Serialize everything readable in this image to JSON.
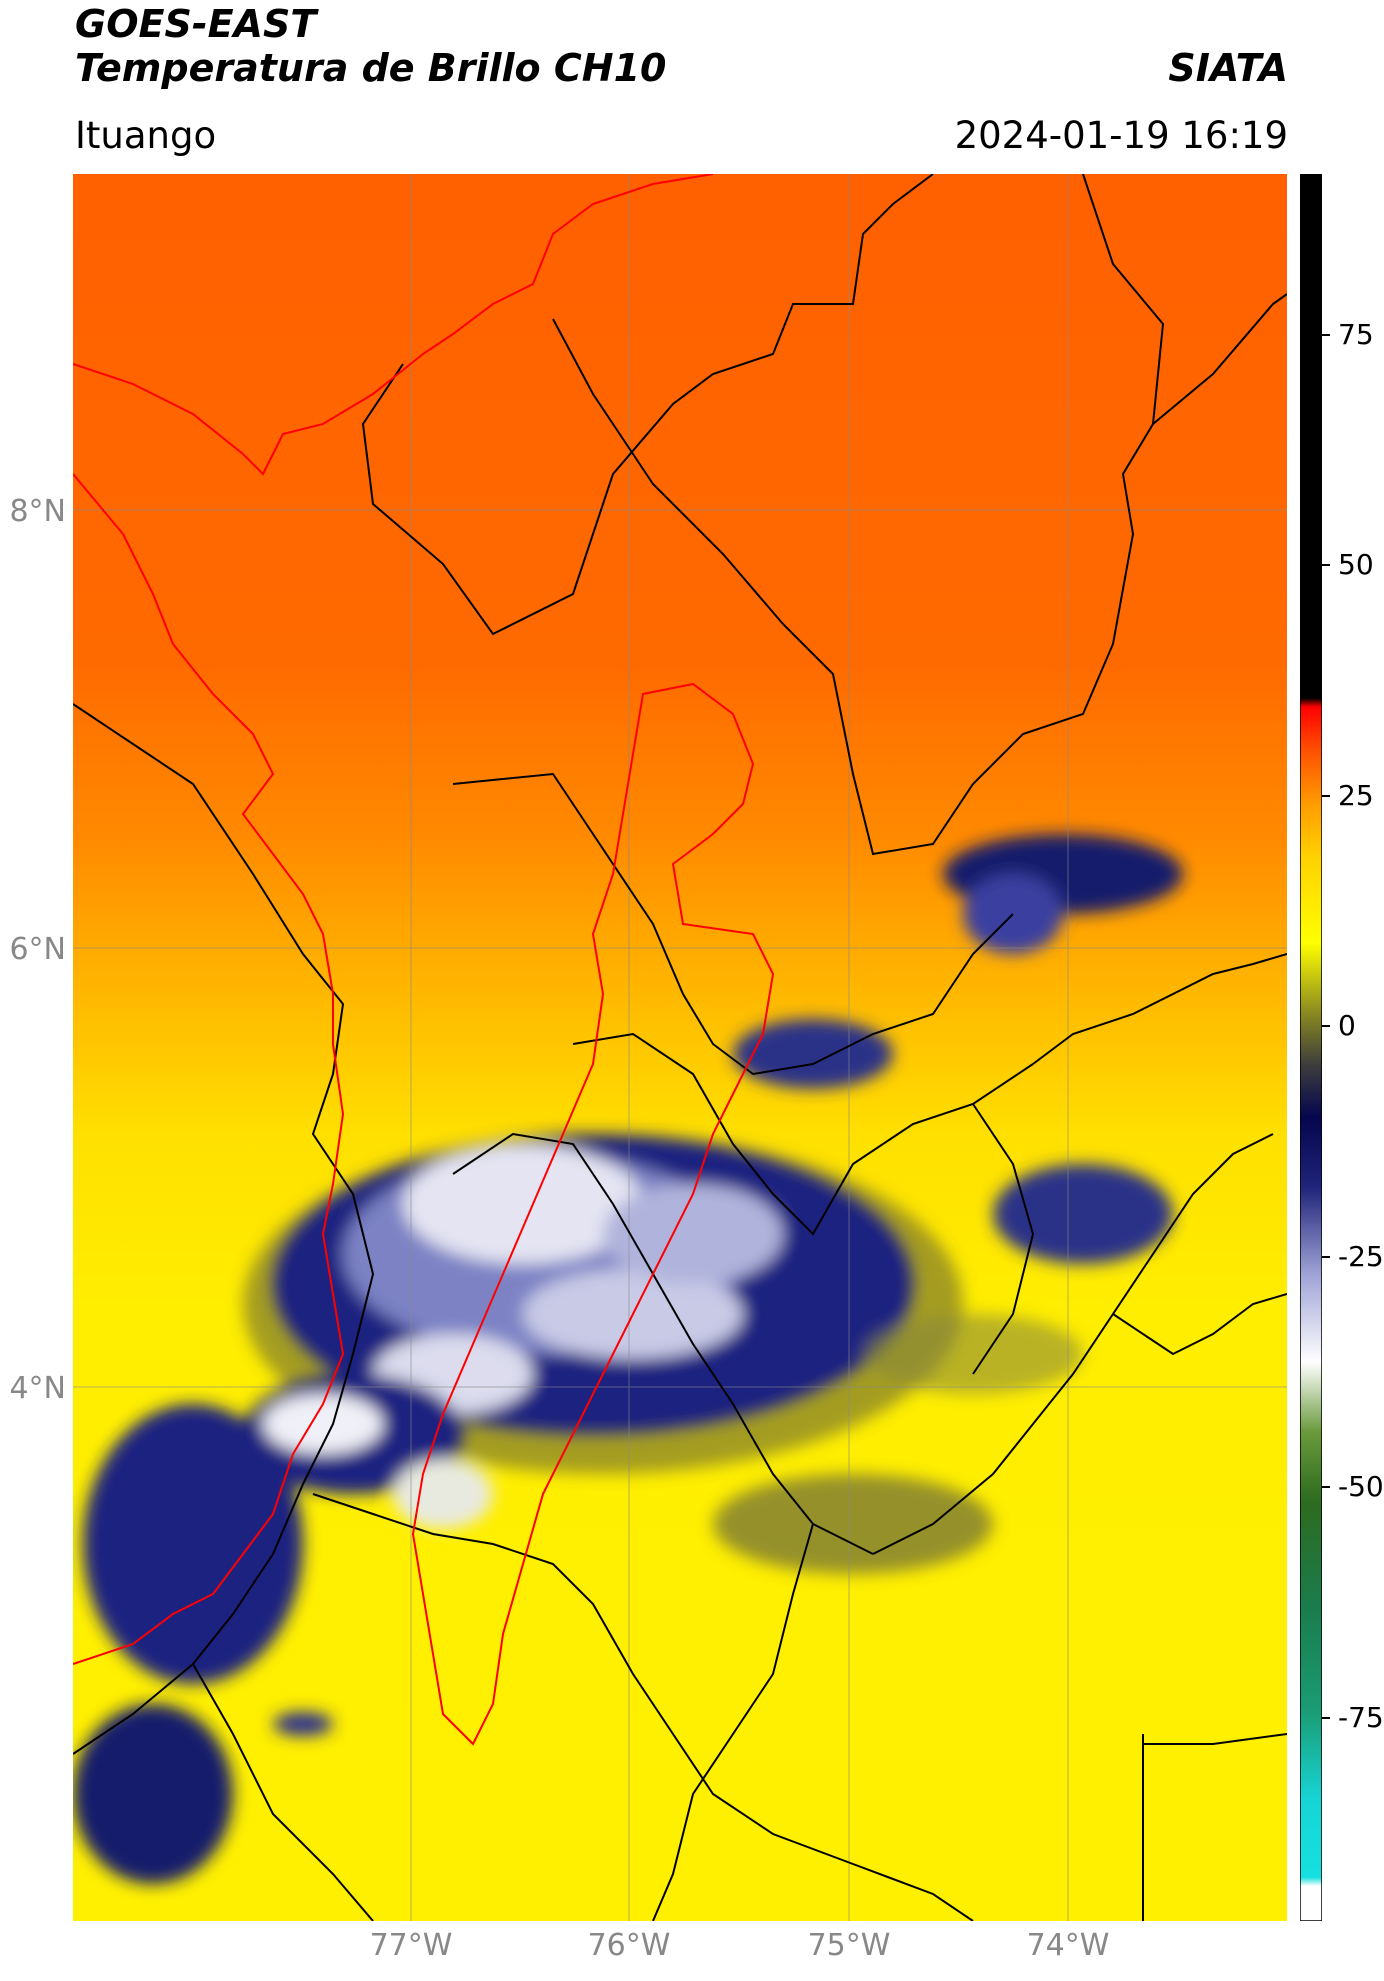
{
  "title": {
    "line1": "GOES-EAST",
    "line2": "Temperatura de Brillo CH10",
    "org": "SIATA",
    "location": "Ituango",
    "datetime": "2024-01-19 16:19"
  },
  "axes": {
    "lat_labels": [
      "8°N",
      "6°N",
      "4°N"
    ],
    "lon_labels": [
      "77°W",
      "76°W",
      "75°W",
      "74°W"
    ]
  },
  "colorbar": {
    "ticks": [
      "75",
      "50",
      "25",
      "0",
      "-25",
      "-50",
      "-75"
    ],
    "colors": [
      "#ffffff",
      "#17d4d4",
      "#1a8c6c",
      "#2d6b1f",
      "#6a9a3c",
      "#ffffff",
      "#9fa3d6",
      "#20247a",
      "#05064e",
      "#3d3d3d",
      "#8a8a20",
      "#ffff00",
      "#ffd000",
      "#ff9a00",
      "#ff5000",
      "#ff0000",
      "#000000"
    ]
  },
  "map_colors": {
    "warm": "#ff6600",
    "mid": "#ffa000",
    "yellow": "#ffff00",
    "cloud_dark": "#141a7a",
    "cloud_light": "#e8e8f4",
    "border_black": "#000000",
    "border_red": "#ff0000"
  }
}
